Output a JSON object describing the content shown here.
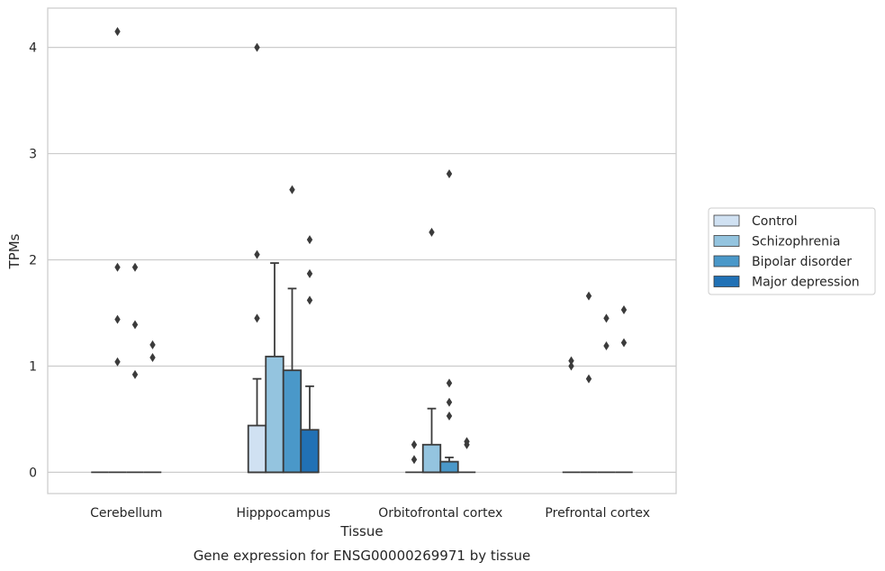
{
  "chart_data": {
    "type": "box",
    "title": "Gene expression for ENSG00000269971 by tissue",
    "xlabel": "Tissue",
    "ylabel": "TPMs",
    "ylim": [
      -0.2,
      4.37
    ],
    "yticks": [
      0,
      1,
      2,
      3,
      4
    ],
    "grid": "horizontal",
    "legend_position": "right",
    "categories": [
      "Cerebellum",
      "Hipppocampus",
      "Orbitofrontal cortex",
      "Prefrontal cortex"
    ],
    "series": [
      {
        "name": "Control",
        "color": "#d0e1f2",
        "boxes": [
          {
            "q1": 0,
            "median": 0,
            "q3": 0,
            "whislo": 0,
            "whishi": 0,
            "fliers": []
          },
          {
            "q1": 0,
            "median": 0,
            "q3": 0.44,
            "whislo": 0,
            "whishi": 0.88,
            "fliers": [
              1.45,
              2.05,
              4.0
            ]
          },
          {
            "q1": 0,
            "median": 0,
            "q3": 0,
            "whislo": 0,
            "whishi": 0,
            "fliers": [
              0.12,
              0.26
            ]
          },
          {
            "q1": 0,
            "median": 0,
            "q3": 0,
            "whislo": 0,
            "whishi": 0,
            "fliers": [
              1.0,
              1.05
            ]
          }
        ]
      },
      {
        "name": "Schizophrenia",
        "color": "#94c4df",
        "boxes": [
          {
            "q1": 0,
            "median": 0,
            "q3": 0,
            "whislo": 0,
            "whishi": 0,
            "fliers": [
              1.04,
              1.44,
              1.93,
              4.15
            ]
          },
          {
            "q1": 0,
            "median": 0,
            "q3": 1.09,
            "whislo": 0,
            "whishi": 1.97,
            "fliers": []
          },
          {
            "q1": 0,
            "median": 0,
            "q3": 0.26,
            "whislo": 0,
            "whishi": 0.6,
            "fliers": [
              2.26
            ]
          },
          {
            "q1": 0,
            "median": 0,
            "q3": 0,
            "whislo": 0,
            "whishi": 0,
            "fliers": [
              0.88,
              1.66
            ]
          }
        ]
      },
      {
        "name": "Bipolar disorder",
        "color": "#4a98c9",
        "boxes": [
          {
            "q1": 0,
            "median": 0,
            "q3": 0,
            "whislo": 0,
            "whishi": 0,
            "fliers": [
              0.92,
              1.39,
              1.93
            ]
          },
          {
            "q1": 0,
            "median": 0,
            "q3": 0.96,
            "whislo": 0,
            "whishi": 1.73,
            "fliers": [
              2.66
            ]
          },
          {
            "q1": 0,
            "median": 0,
            "q3": 0.1,
            "whislo": 0,
            "whishi": 0.14,
            "fliers": [
              0.53,
              0.66,
              0.84,
              2.81
            ]
          },
          {
            "q1": 0,
            "median": 0,
            "q3": 0,
            "whislo": 0,
            "whishi": 0,
            "fliers": [
              1.19,
              1.45
            ]
          }
        ]
      },
      {
        "name": "Major depression",
        "color": "#2171b5",
        "boxes": [
          {
            "q1": 0,
            "median": 0,
            "q3": 0,
            "whislo": 0,
            "whishi": 0,
            "fliers": [
              1.08,
              1.2
            ]
          },
          {
            "q1": 0,
            "median": 0,
            "q3": 0.4,
            "whislo": 0,
            "whishi": 0.81,
            "fliers": [
              1.62,
              1.87,
              2.19
            ]
          },
          {
            "q1": 0,
            "median": 0,
            "q3": 0,
            "whislo": 0,
            "whishi": 0,
            "fliers": [
              0.26,
              0.29
            ]
          },
          {
            "q1": 0,
            "median": 0,
            "q3": 0,
            "whislo": 0,
            "whishi": 0,
            "fliers": [
              1.22,
              1.53
            ]
          }
        ]
      }
    ]
  }
}
